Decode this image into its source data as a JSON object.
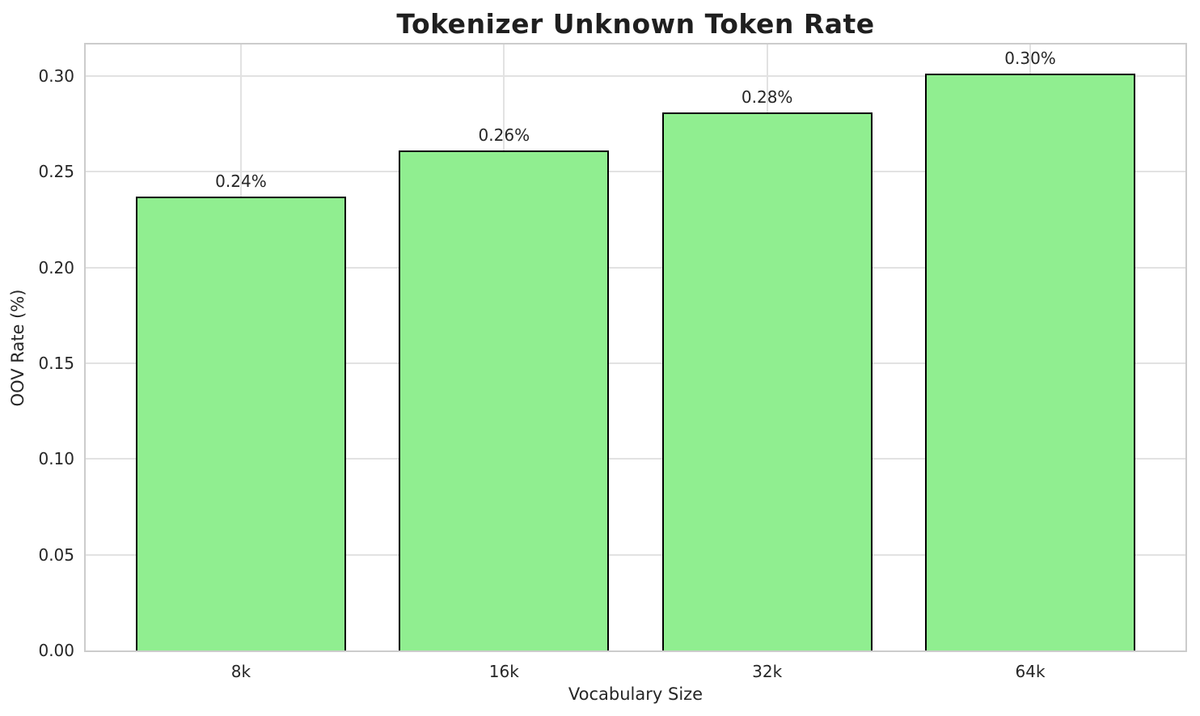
{
  "chart_data": {
    "type": "bar",
    "title": "Tokenizer Unknown Token Rate",
    "xlabel": "Vocabulary Size",
    "ylabel": "OOV Rate (%)",
    "categories": [
      "8k",
      "16k",
      "32k",
      "64k"
    ],
    "values": [
      0.237,
      0.261,
      0.281,
      0.301
    ],
    "bar_value_labels": [
      "0.24%",
      "0.26%",
      "0.28%",
      "0.30%"
    ],
    "ytick_labels": [
      "0.00",
      "0.05",
      "0.10",
      "0.15",
      "0.20",
      "0.25",
      "0.30"
    ],
    "ytick_values": [
      0.0,
      0.05,
      0.1,
      0.15,
      0.2,
      0.25,
      0.3
    ],
    "ylim": [
      0,
      0.3164
    ],
    "xlim": [
      -0.59,
      3.59
    ],
    "bar_width_units": 0.8,
    "grid": true,
    "legend": null,
    "colors": {
      "bar_fill": "#90EE90",
      "bar_edge": "#000000",
      "grid": "#e2e2e2",
      "spine": "#cccccc",
      "tick_text": "#262626",
      "title_text": "#1f1f1f"
    }
  }
}
